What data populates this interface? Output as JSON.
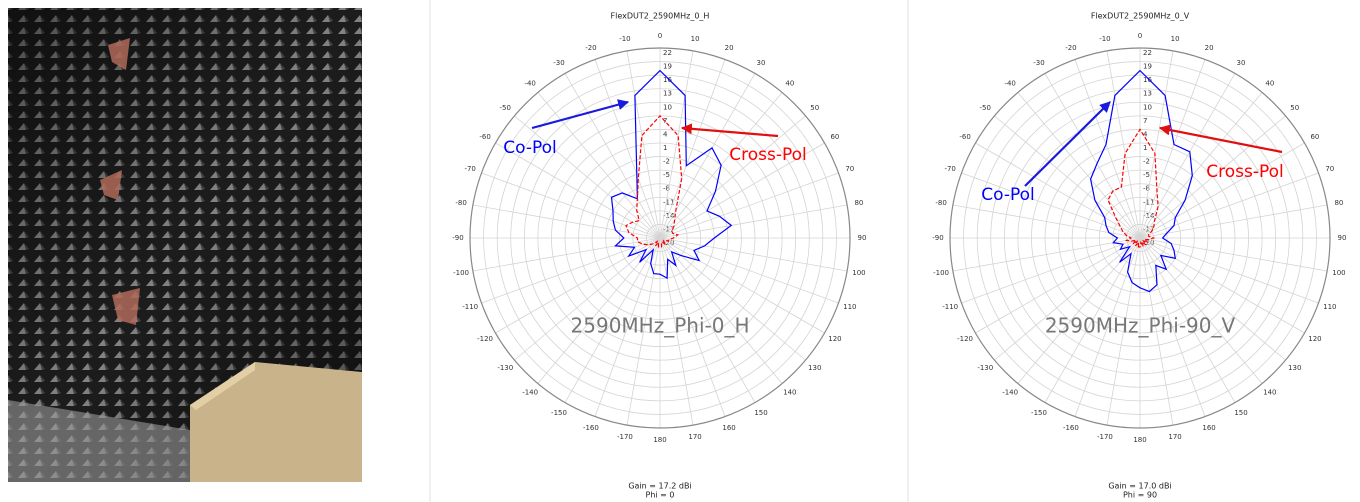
{
  "chart_data": [
    {
      "type": "polar",
      "title": "FlexDUT2_2590MHz_0_H",
      "x": [
        -170,
        -160,
        -150,
        -140,
        -130,
        -120,
        -110,
        -100,
        -90,
        -80,
        -70,
        -60,
        -50,
        -40,
        -30,
        -20,
        -10,
        0,
        10,
        20,
        30,
        40,
        50,
        60,
        70,
        80,
        90,
        100,
        110,
        120,
        130,
        140,
        150,
        160,
        170,
        180
      ],
      "series": [
        {
          "name": "Co-Pol",
          "color": "#0000ff",
          "linestyle": "solid",
          "values": [
            -12,
            -14,
            -17,
            -13,
            -16,
            -12,
            -14,
            -10,
            -12,
            -10,
            -9,
            -8,
            -6,
            -7,
            -10,
            -5,
            12,
            17,
            12,
            -3,
            3,
            1,
            -4,
            -8,
            -6,
            -4,
            -8,
            -10,
            -12,
            -10,
            -14,
            -16,
            -13,
            -15,
            -11,
            -12
          ]
        },
        {
          "name": "Cross-Pol",
          "color": "#ff0000",
          "linestyle": "dashed",
          "values": [
            -18,
            -19,
            -18,
            -19,
            -18,
            -17,
            -16,
            -15,
            -15,
            -13,
            -12,
            -13,
            -14,
            -12,
            -10,
            -6,
            3,
            7,
            3,
            -6,
            -13,
            -15,
            -16,
            -17,
            -17,
            -16,
            -17,
            -18,
            -18,
            -19,
            -19,
            -18,
            -19,
            -19,
            -18,
            -18
          ]
        }
      ],
      "xticks": [
        0,
        10,
        20,
        30,
        40,
        50,
        60,
        70,
        80,
        90,
        100,
        110,
        120,
        130,
        140,
        150,
        160,
        170,
        180,
        -170,
        -160,
        -150,
        -140,
        -130,
        -120,
        -110,
        -100,
        -90,
        -80,
        -70,
        -60,
        -50,
        -40,
        -30,
        -20,
        -10
      ],
      "rlim": [
        -20,
        22
      ],
      "rticks": [
        22,
        19,
        16,
        13,
        10,
        7,
        4,
        1,
        -2,
        -5,
        -8,
        -11,
        -14,
        -17,
        -20
      ],
      "grid": true,
      "center_label": "2590MHz_Phi-0_H",
      "gain_label": "Gain = 17.2 dBi",
      "phi_label": "Phi = 0"
    },
    {
      "type": "polar",
      "title": "FlexDUT2_2590MHz_0_V",
      "x": [
        -170,
        -160,
        -150,
        -140,
        -130,
        -120,
        -110,
        -100,
        -90,
        -80,
        -70,
        -60,
        -50,
        -40,
        -30,
        -20,
        -10,
        0,
        10,
        20,
        30,
        40,
        50,
        60,
        70,
        80,
        90,
        100,
        110,
        120,
        130,
        140,
        150,
        160,
        170,
        180
      ],
      "series": [
        {
          "name": "Co-Pol",
          "color": "#0000ff",
          "linestyle": "solid",
          "values": [
            -10,
            -12,
            -16,
            -13,
            -17,
            -15,
            -16,
            -14,
            -15,
            -13,
            -12,
            -11,
            -7,
            -3,
            -1,
            2,
            12,
            17,
            12,
            2,
            2,
            -2,
            -7,
            -11,
            -12,
            -14,
            -15,
            -13,
            -12,
            -11,
            -14,
            -11,
            -13,
            -9,
            -8,
            -9
          ]
        },
        {
          "name": "Cross-Pol",
          "color": "#ff0000",
          "linestyle": "dashed",
          "values": [
            -18,
            -19,
            -18,
            -19,
            -18,
            -19,
            -18,
            -17,
            -18,
            -17,
            -16,
            -15,
            -13,
            -9,
            -8,
            -8,
            -1,
            4,
            -1,
            -9,
            -12,
            -15,
            -16,
            -17,
            -18,
            -18,
            -17,
            -18,
            -19,
            -18,
            -19,
            -18,
            -19,
            -18,
            -19,
            -18
          ]
        }
      ],
      "xticks": [
        0,
        10,
        20,
        30,
        40,
        50,
        60,
        70,
        80,
        90,
        100,
        110,
        120,
        130,
        140,
        150,
        160,
        170,
        180,
        -170,
        -160,
        -150,
        -140,
        -130,
        -120,
        -110,
        -100,
        -90,
        -80,
        -70,
        -60,
        -50,
        -40,
        -30,
        -20,
        -10
      ],
      "rlim": [
        -20,
        22
      ],
      "rticks": [
        22,
        19,
        16,
        13,
        10,
        7,
        4,
        1,
        -2,
        -5,
        -8,
        -11,
        -14,
        -17,
        -20
      ],
      "grid": true,
      "center_label": "2590MHz_Phi-90_V",
      "gain_label": "Gain = 17.0 dBi",
      "phi_label": "Phi = 90"
    }
  ]
}
